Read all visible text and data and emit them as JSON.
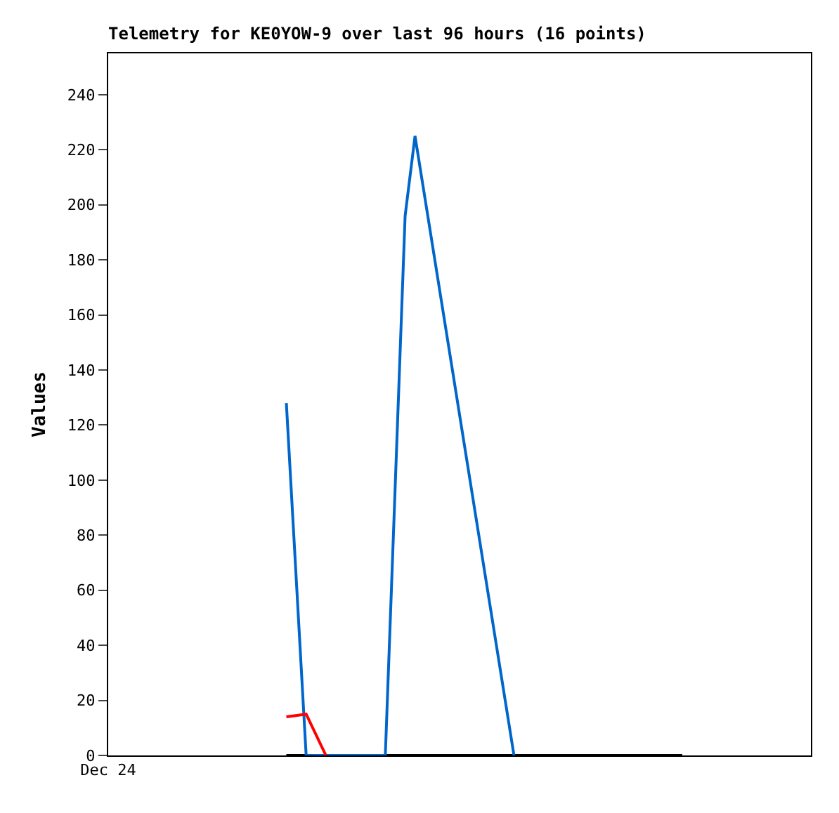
{
  "chart_data": {
    "type": "line",
    "title": "Telemetry for KE0YOW-9 over last 96 hours (16 points)",
    "ylabel": "Values",
    "categories": [
      "Dec 24",
      null,
      null,
      null,
      null,
      null,
      null,
      null,
      null,
      null,
      null,
      null,
      null,
      null,
      null,
      null,
      null,
      null,
      null,
      null,
      null,
      null,
      null,
      null,
      null,
      null,
      null,
      null,
      null,
      null,
      null,
      null,
      null,
      null,
      null,
      null,
      null,
      null,
      null,
      null,
      null,
      null,
      null,
      null,
      null,
      null,
      null,
      null,
      null,
      null,
      null,
      null,
      null,
      null,
      null,
      null,
      null,
      null,
      null,
      null,
      null,
      null,
      null,
      null,
      null,
      null,
      null,
      null,
      null,
      null,
      null,
      null
    ],
    "ylim": [
      0,
      255
    ],
    "yticks": [
      0,
      20,
      40,
      60,
      80,
      100,
      120,
      140,
      160,
      180,
      200,
      220,
      240
    ],
    "grid": false,
    "series": [
      {
        "color": "#000000",
        "values": [
          null,
          null,
          null,
          null,
          null,
          null,
          null,
          null,
          null,
          null,
          null,
          null,
          null,
          null,
          null,
          null,
          null,
          null,
          0,
          0,
          0,
          0,
          0,
          0,
          0,
          0,
          0,
          0,
          0,
          0,
          0,
          0,
          0,
          0,
          0,
          0,
          0,
          0,
          0,
          0,
          0,
          0,
          0,
          0,
          0,
          0,
          0,
          0,
          0,
          0,
          0,
          0,
          0,
          0,
          0,
          0,
          0,
          0,
          0,
          null,
          null,
          null,
          null,
          null,
          null,
          null,
          null,
          null,
          null,
          null,
          null,
          null
        ]
      },
      {
        "color": "#0066cc",
        "values": [
          null,
          null,
          null,
          null,
          null,
          null,
          null,
          null,
          null,
          null,
          null,
          null,
          null,
          null,
          null,
          null,
          null,
          null,
          128,
          null,
          0,
          null,
          null,
          null,
          null,
          null,
          null,
          null,
          0,
          null,
          196,
          225,
          null,
          null,
          null,
          null,
          null,
          null,
          null,
          null,
          null,
          0,
          null,
          null,
          null,
          null,
          null,
          null,
          null,
          null,
          null,
          null,
          null,
          null,
          null,
          null,
          null,
          null,
          null,
          null,
          null,
          null,
          null,
          null,
          null,
          null,
          null,
          null,
          null,
          null,
          null,
          null
        ]
      },
      {
        "color": "#ff0000",
        "values": [
          null,
          null,
          null,
          null,
          null,
          null,
          null,
          null,
          null,
          null,
          null,
          null,
          null,
          null,
          null,
          null,
          null,
          null,
          14,
          null,
          15,
          null,
          0,
          null,
          null,
          null,
          null,
          null,
          null,
          null,
          null,
          null,
          null,
          null,
          null,
          null,
          null,
          null,
          null,
          null,
          null,
          null,
          null,
          null,
          null,
          null,
          null,
          null,
          null,
          null,
          null,
          null,
          null,
          null,
          null,
          null,
          null,
          null,
          null,
          null,
          null,
          null,
          null,
          null,
          null,
          null,
          null,
          null,
          null,
          null,
          null,
          null
        ]
      }
    ]
  }
}
